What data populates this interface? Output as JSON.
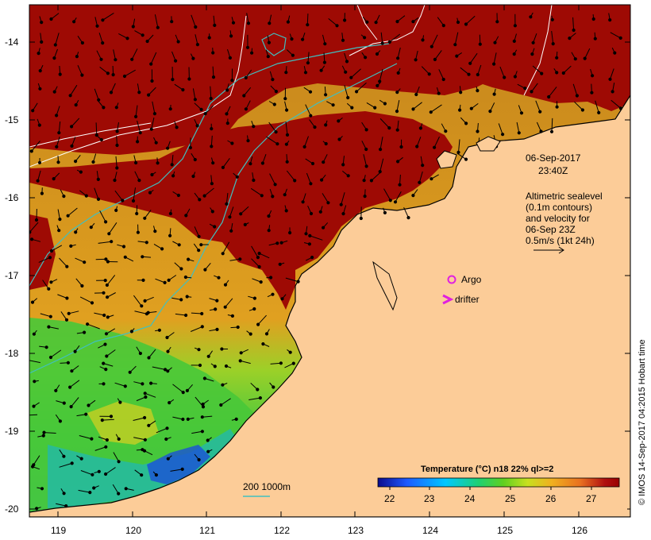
{
  "map": {
    "y_tick_labels": [
      "-14",
      "-15",
      "-16",
      "-17",
      "-18",
      "-19",
      "-20"
    ],
    "x_tick_labels": [
      "119",
      "120",
      "121",
      "122",
      "123",
      "124",
      "125",
      "126"
    ],
    "timestamp_date": "06-Sep-2017",
    "timestamp_time": "23:40Z",
    "altimetry_note": [
      "Altimetric sealevel",
      "(0.1m contours)",
      "and velocity for",
      "06-Sep 23Z",
      "0.5m/s (1kt 24h)"
    ],
    "legend": {
      "argo_label": "Argo",
      "drifter_label": "drifter"
    },
    "depth_contour_label": "200  1000m",
    "colorbar": {
      "title": "Temperature (°C) n18 22% ql>=2",
      "tick_labels": [
        "22",
        "23",
        "24",
        "25",
        "26",
        "27"
      ],
      "value_range": [
        21.7,
        27.7
      ],
      "colors": [
        "#0a0a8c",
        "#1e5aff",
        "#00c8ff",
        "#20d070",
        "#50d020",
        "#c8e020",
        "#f0b020",
        "#e87020",
        "#b01010",
        "#9a0000"
      ]
    },
    "copyright": "© IMOS 14-Sep-2017 04:2015 Hobart time",
    "colors": {
      "land": "#fccc98",
      "no_data": "#9e0a04",
      "depth_contour_200": "#40c0c0",
      "sealevel_contour": "#ffffff",
      "argo": "#e020e0",
      "drifter": "#e020e0"
    }
  }
}
